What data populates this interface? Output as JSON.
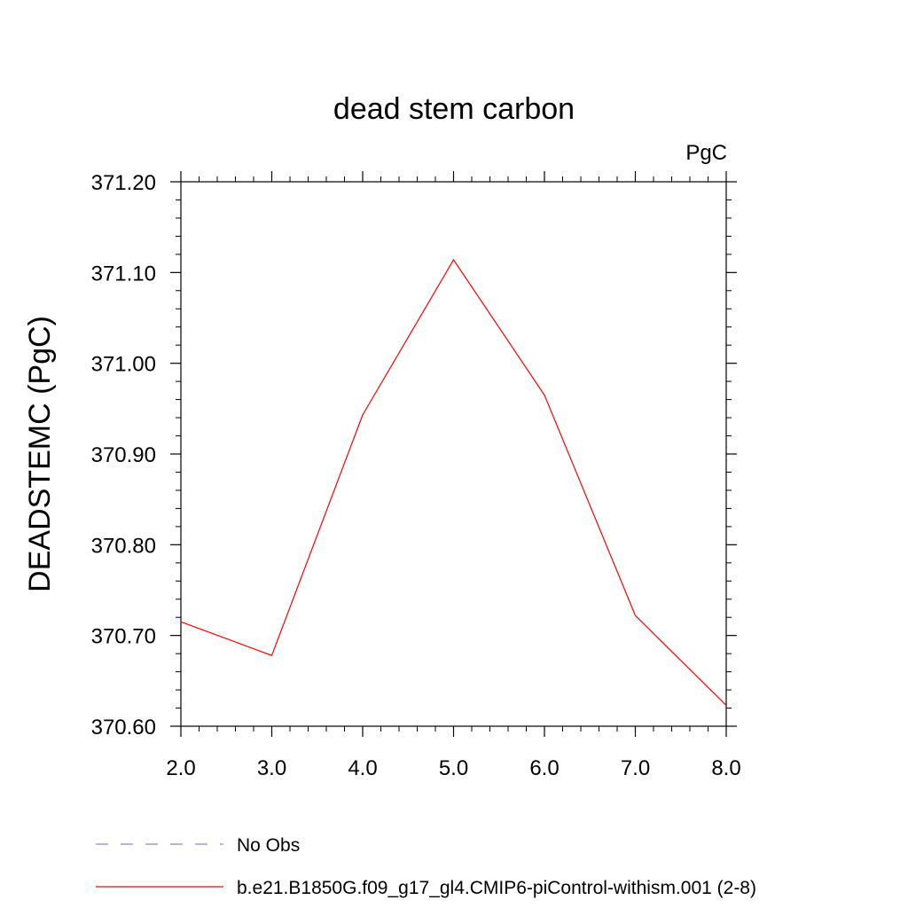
{
  "chart_data": {
    "type": "line",
    "title": "dead stem carbon",
    "units_label": "PgC",
    "ylabel": "DEADSTEMC  (PgC)",
    "xlabel": "",
    "xlim": [
      2.0,
      8.0
    ],
    "ylim": [
      370.6,
      371.2
    ],
    "xticks": [
      "2.0",
      "3.0",
      "4.0",
      "5.0",
      "6.0",
      "7.0",
      "8.0"
    ],
    "yticks": [
      "370.60",
      "370.70",
      "370.80",
      "370.90",
      "371.00",
      "371.10",
      "371.20"
    ],
    "series": [
      {
        "name": "b.e21.B1850G.f09_g17_gl4.CMIP6-piControl-withism.001 (2-8)",
        "color": "#ff0000",
        "x": [
          2.0,
          3.0,
          4.0,
          5.0,
          6.0,
          7.0,
          8.0
        ],
        "y": [
          370.715,
          370.678,
          370.943,
          371.114,
          370.965,
          370.722,
          370.623
        ]
      }
    ],
    "legend": [
      {
        "label": "No Obs",
        "color": "#8f86c4",
        "style": "dashed"
      },
      {
        "label": "b.e21.B1850G.f09_g17_gl4.CMIP6-piControl-withism.001 (2-8)",
        "color": "#ff0000",
        "style": "solid"
      }
    ],
    "legend_position": "bottom",
    "grid": false
  }
}
